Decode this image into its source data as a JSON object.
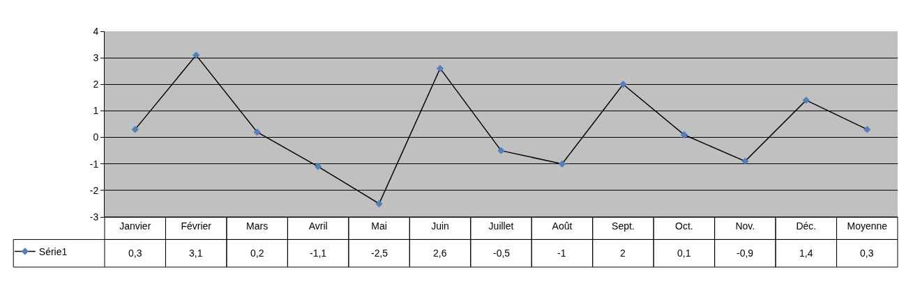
{
  "chart_data": {
    "type": "line",
    "categories": [
      "Janvier",
      "Février",
      "Mars",
      "Avril",
      "Mai",
      "Juin",
      "Juillet",
      "Août",
      "Sept.",
      "Oct.",
      "Nov.",
      "Déc.",
      "Moyenne"
    ],
    "series": [
      {
        "name": "Série1",
        "color": "#4f81bd",
        "values": [
          0.3,
          3.1,
          0.2,
          -1.1,
          -2.5,
          2.6,
          -0.5,
          -1,
          2,
          0.1,
          -0.9,
          1.4,
          0.3
        ],
        "value_labels": [
          "0,3",
          "3,1",
          "0,2",
          "-1,1",
          "-2,5",
          "2,6",
          "-0,5",
          "-1",
          "2",
          "0,1",
          "-0,9",
          "1,4",
          "0,3"
        ]
      }
    ],
    "ylim": [
      -3,
      4
    ],
    "yticks": [
      -3,
      -2,
      -1,
      0,
      1,
      2,
      3,
      4
    ],
    "grid": "y",
    "marker": "diamond",
    "line_style": "solid",
    "legend": "bottom left"
  }
}
